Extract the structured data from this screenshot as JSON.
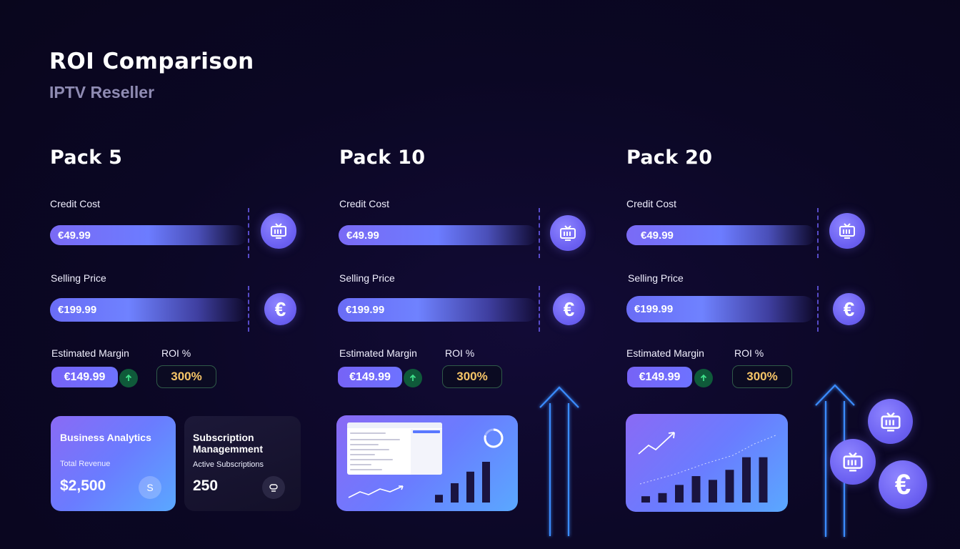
{
  "header": {
    "title": "ROI Comparison",
    "subtitle": "IPTV Reseller"
  },
  "labels": {
    "credit_cost": "Credit Cost",
    "selling_price": "Selling Price",
    "estimated_margin": "Estimated Margin",
    "roi": "ROI %"
  },
  "packs": [
    {
      "name": "Pack 5",
      "credit_cost": "€49.99",
      "selling_price": "€199.99",
      "margin": "€149.99",
      "roi": "300%"
    },
    {
      "name": "Pack 10",
      "credit_cost": "€49.99",
      "selling_price": "€199.99",
      "margin": "€149.99",
      "roi": "300%"
    },
    {
      "name": "Pack 20",
      "credit_cost": "€49.99",
      "selling_price": "€199.99",
      "margin": "€149.99",
      "roi": "300%"
    }
  ],
  "cards": {
    "analytics": {
      "title": "Business Analytics",
      "sub": "Total Revenue",
      "value": "$2,500",
      "icon": "S"
    },
    "subscription": {
      "title": "Subscription Managemment",
      "sub": "Active Subscriptions",
      "value": "250"
    }
  },
  "icons": {
    "tv": "tv-icon",
    "euro": "€",
    "up": "arrow-up-icon"
  },
  "colors": {
    "background": "#0b0724",
    "accent": "#6d62f2",
    "roi_text": "#f6c568",
    "glow": "#3a8cff"
  },
  "charts": {
    "pack10_bars": [
      0.18,
      0.45,
      0.72,
      0.95
    ],
    "pack20_bars": [
      0.1,
      0.15,
      0.28,
      0.42,
      0.36,
      0.52,
      0.72,
      0.72
    ]
  }
}
